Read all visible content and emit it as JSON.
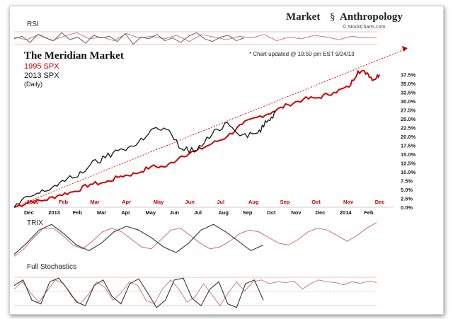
{
  "brand": {
    "word1": "Market",
    "word2": "Anthropology",
    "credit": "© StockCharts.com"
  },
  "panels": {
    "rsi": "RSI",
    "trix": "TRIX",
    "stoch": "Full Stochastics"
  },
  "title": {
    "main": "The Meridian Market",
    "series_1995": "1995 SPX",
    "series_2013": "2013 SPX",
    "daily": "(Daily)",
    "note": "* Chart updated @ 10:50 pm EST 9/24/13"
  },
  "colors": {
    "s1995": "#cc0000",
    "s2013": "#111111",
    "trend": "#cc0000"
  },
  "chart_data": {
    "type": "line",
    "x_top_labels_1995": [
      "1995",
      "Feb",
      "Mar",
      "Apr",
      "May",
      "Jun",
      "Jul",
      "Aug",
      "Sep",
      "Oct",
      "Nov",
      "Dec"
    ],
    "x_bottom_labels_2013": [
      "Dec",
      "2013",
      "Feb",
      "Mar",
      "Apr",
      "May",
      "Jun",
      "Jul",
      "Aug",
      "Sep",
      "Oct",
      "Nov",
      "Dec",
      "2014",
      "Feb"
    ],
    "y_axis_labels": [
      "37.5%",
      "35.0%",
      "32.5%",
      "30.0%",
      "27.5%",
      "25.0%",
      "22.5%",
      "20.0%",
      "17.5%",
      "15.0%",
      "12.5%",
      "10.0%",
      "7.5%",
      "5.0%",
      "2.5%",
      "0.0%"
    ],
    "ylim": [
      0,
      40
    ],
    "series": [
      {
        "name": "1995 SPX",
        "x_month": [
          0,
          0.5,
          1,
          1.5,
          2,
          2.5,
          3,
          3.5,
          4,
          4.5,
          5,
          5.5,
          6,
          6.5,
          7,
          7.5,
          8,
          8.5,
          9,
          9.5,
          10,
          10.5,
          11,
          11.3,
          11.6,
          11.8,
          12
        ],
        "y_pct": [
          0,
          1.5,
          2,
          3.5,
          4.5,
          6.5,
          7,
          8.8,
          9.5,
          11.5,
          11.5,
          14.5,
          16,
          18,
          20,
          23.5,
          25.5,
          27,
          29,
          30.5,
          31,
          32.5,
          34,
          38.5,
          38,
          36,
          37.5
        ]
      },
      {
        "name": "2013 SPX",
        "x_month": [
          0,
          0.5,
          1,
          1.5,
          2,
          2.5,
          3,
          3.5,
          4,
          4.5,
          5,
          5.5,
          6,
          6.5,
          7,
          7.5,
          8,
          8.3,
          8.6
        ],
        "y_pct": [
          0,
          3,
          4.5,
          7,
          8.5,
          12,
          14,
          16.5,
          17.5,
          22,
          22,
          16.5,
          16,
          20.5,
          24,
          20.5,
          21,
          24,
          27
        ]
      }
    ],
    "trendline": {
      "from": [
        0,
        0
      ],
      "to": [
        12,
        44
      ]
    },
    "rsi_series": {
      "gray": [
        56,
        62,
        48,
        66,
        58,
        52,
        70,
        54,
        60,
        46,
        64,
        58,
        62,
        50,
        68,
        44,
        60,
        56,
        66,
        52,
        58,
        48,
        62,
        70,
        56,
        50,
        60,
        64,
        52,
        58
      ],
      "red": [
        60,
        54,
        66,
        52,
        62,
        70,
        56,
        60,
        52,
        68,
        58,
        62,
        56,
        64,
        50,
        66,
        60,
        54,
        62,
        58,
        66,
        52,
        60,
        56,
        64,
        60,
        54,
        62,
        58,
        60
      ]
    },
    "trix_series": {
      "black": [
        -0.8,
        -0.2,
        0.5,
        0.8,
        0.3,
        -0.3,
        -0.6,
        -0.2,
        0.4,
        0.7,
        0.5,
        0.1,
        -0.4,
        -0.7,
        -0.2,
        0.5,
        0.8,
        0.4,
        -0.1,
        -0.6,
        -0.3
      ],
      "red": [
        -0.9,
        -0.5,
        0.1,
        0.6,
        0.6,
        0.2,
        -0.3,
        -0.5,
        -0.1,
        0.4,
        0.6,
        0.4,
        0.0,
        -0.4,
        -0.5,
        0.0,
        0.5,
        0.6,
        0.2,
        -0.2,
        -0.5,
        -0.4,
        -0.1,
        0.3,
        0.5,
        0.4,
        0.1,
        -0.2,
        -0.3,
        0.0,
        0.4,
        0.6,
        0.5,
        0.2,
        -0.1,
        0.2,
        0.6,
        0.9
      ]
    },
    "stoch_series": {
      "black": [
        70,
        85,
        30,
        20,
        80,
        90,
        60,
        25,
        15,
        70,
        85,
        40,
        20,
        75,
        88,
        50,
        10,
        30,
        85,
        90,
        35,
        15,
        60,
        80,
        20,
        10,
        75,
        85,
        30
      ],
      "red": [
        60,
        80,
        50,
        25,
        55,
        85,
        75,
        40,
        20,
        45,
        80,
        65,
        30,
        50,
        80,
        70,
        30,
        20,
        60,
        85,
        60,
        25,
        40,
        75,
        45,
        15,
        50,
        80,
        55,
        80,
        85,
        75,
        80,
        78,
        82,
        60,
        75,
        85,
        80,
        78,
        72,
        80,
        76,
        82,
        78
      ]
    }
  }
}
